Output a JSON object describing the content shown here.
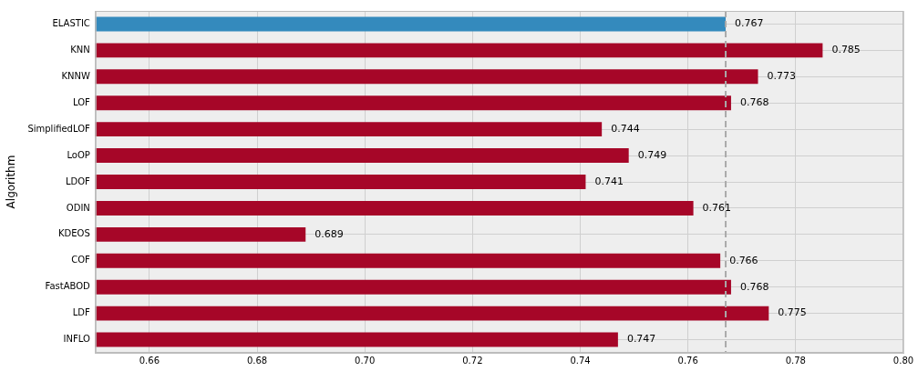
{
  "chart_data": {
    "type": "bar",
    "orientation": "horizontal",
    "ylabel": "Algorithm",
    "categories": [
      "ELASTIC",
      "KNN",
      "KNNW",
      "LOF",
      "SimplifiedLOF",
      "LoOP",
      "LDOF",
      "ODIN",
      "KDEOS",
      "COF",
      "FastABOD",
      "LDF",
      "INFLO"
    ],
    "values": [
      0.767,
      0.785,
      0.773,
      0.768,
      0.744,
      0.749,
      0.741,
      0.761,
      0.689,
      0.766,
      0.768,
      0.775,
      0.747
    ],
    "colors": [
      "#348ABD",
      "#A60628",
      "#A60628",
      "#A60628",
      "#A60628",
      "#A60628",
      "#A60628",
      "#A60628",
      "#A60628",
      "#A60628",
      "#A60628",
      "#A60628",
      "#A60628"
    ],
    "xlim": [
      0.65,
      0.8
    ],
    "xticks": [
      0.66,
      0.68,
      {
        "value": 0.7,
        "label": "0.70"
      },
      0.72,
      0.74,
      0.76,
      0.78,
      {
        "value": 0.8,
        "label": "0.80"
      }
    ],
    "reference_line": 0.767,
    "grid": true,
    "data_labels": true
  }
}
